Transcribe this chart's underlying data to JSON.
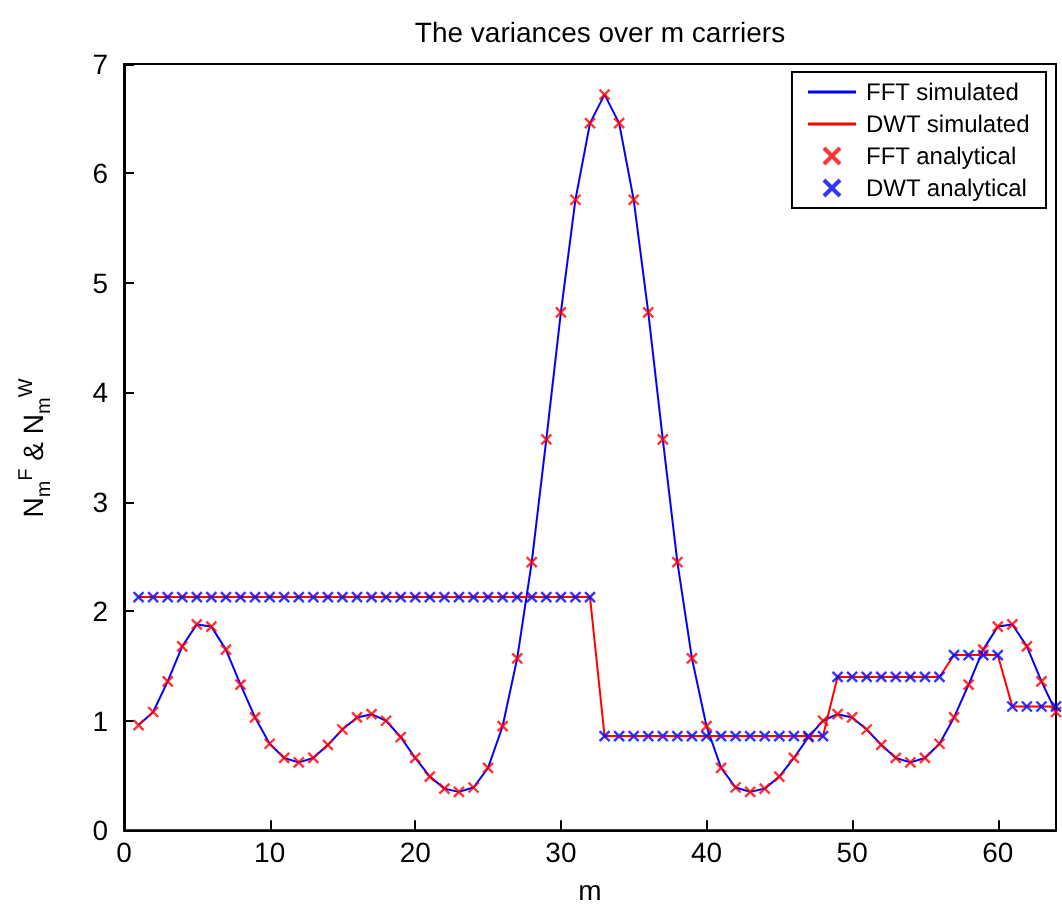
{
  "chart_data": {
    "type": "line",
    "title": "The variances over m carriers",
    "xlabel": "m",
    "ylabel": "N$_{m}$$^{F}$ & N$_{m}$$^{W}$",
    "x": [
      1,
      2,
      3,
      4,
      5,
      6,
      7,
      8,
      9,
      10,
      11,
      12,
      13,
      14,
      15,
      16,
      17,
      18,
      19,
      20,
      21,
      22,
      23,
      24,
      25,
      26,
      27,
      28,
      29,
      30,
      31,
      32,
      33,
      34,
      35,
      36,
      37,
      38,
      39,
      40,
      41,
      42,
      43,
      44,
      45,
      46,
      47,
      48,
      49,
      50,
      51,
      52,
      53,
      54,
      55,
      56,
      57,
      58,
      59,
      60,
      61,
      62,
      63,
      64
    ],
    "series": [
      {
        "name": "FFT simulated",
        "marker": "none",
        "color": "#0000ff",
        "values": [
          0.96,
          1.08,
          1.36,
          1.68,
          1.88,
          1.86,
          1.65,
          1.33,
          1.03,
          0.79,
          0.66,
          0.62,
          0.66,
          0.78,
          0.92,
          1.03,
          1.06,
          1.0,
          0.85,
          0.66,
          0.49,
          0.38,
          0.35,
          0.39,
          0.57,
          0.95,
          1.57,
          2.45,
          3.57,
          4.73,
          5.76,
          6.46,
          6.72,
          6.46,
          5.76,
          4.73,
          3.57,
          2.45,
          1.57,
          0.95,
          0.57,
          0.39,
          0.35,
          0.38,
          0.49,
          0.66,
          0.85,
          1.0,
          1.06,
          1.03,
          0.92,
          0.78,
          0.66,
          0.62,
          0.66,
          0.79,
          1.03,
          1.33,
          1.65,
          1.86,
          1.88,
          1.68,
          1.36,
          1.08
        ]
      },
      {
        "name": "DWT simulated",
        "marker": "none",
        "color": "#ff0000",
        "values": [
          2.13,
          2.13,
          2.13,
          2.13,
          2.13,
          2.13,
          2.13,
          2.13,
          2.13,
          2.13,
          2.13,
          2.13,
          2.13,
          2.13,
          2.13,
          2.13,
          2.13,
          2.13,
          2.13,
          2.13,
          2.13,
          2.13,
          2.13,
          2.13,
          2.13,
          2.13,
          2.13,
          2.13,
          2.13,
          2.13,
          2.13,
          2.13,
          0.86,
          0.86,
          0.86,
          0.86,
          0.86,
          0.86,
          0.86,
          0.86,
          0.86,
          0.86,
          0.86,
          0.86,
          0.86,
          0.86,
          0.86,
          0.86,
          1.4,
          1.4,
          1.4,
          1.4,
          1.4,
          1.4,
          1.4,
          1.4,
          1.6,
          1.6,
          1.6,
          1.6,
          1.13,
          1.13,
          1.13,
          1.13
        ]
      },
      {
        "name": "FFT analytical",
        "type": "scatter",
        "marker": "cross",
        "color": "#ff0000",
        "values": [
          0.96,
          1.08,
          1.36,
          1.68,
          1.88,
          1.86,
          1.65,
          1.33,
          1.03,
          0.79,
          0.66,
          0.62,
          0.66,
          0.78,
          0.92,
          1.03,
          1.06,
          1.0,
          0.85,
          0.66,
          0.49,
          0.38,
          0.35,
          0.39,
          0.57,
          0.95,
          1.57,
          2.45,
          3.57,
          4.73,
          5.76,
          6.46,
          6.72,
          6.46,
          5.76,
          4.73,
          3.57,
          2.45,
          1.57,
          0.95,
          0.57,
          0.39,
          0.35,
          0.38,
          0.49,
          0.66,
          0.85,
          1.0,
          1.06,
          1.03,
          0.92,
          0.78,
          0.66,
          0.62,
          0.66,
          0.79,
          1.03,
          1.33,
          1.65,
          1.86,
          1.88,
          1.68,
          1.36,
          1.08
        ]
      },
      {
        "name": "DWT analytical",
        "type": "scatter",
        "marker": "cross",
        "color": "#0000ff",
        "values": [
          2.13,
          2.13,
          2.13,
          2.13,
          2.13,
          2.13,
          2.13,
          2.13,
          2.13,
          2.13,
          2.13,
          2.13,
          2.13,
          2.13,
          2.13,
          2.13,
          2.13,
          2.13,
          2.13,
          2.13,
          2.13,
          2.13,
          2.13,
          2.13,
          2.13,
          2.13,
          2.13,
          2.13,
          2.13,
          2.13,
          2.13,
          2.13,
          0.86,
          0.86,
          0.86,
          0.86,
          0.86,
          0.86,
          0.86,
          0.86,
          0.86,
          0.86,
          0.86,
          0.86,
          0.86,
          0.86,
          0.86,
          0.86,
          1.4,
          1.4,
          1.4,
          1.4,
          1.4,
          1.4,
          1.4,
          1.4,
          1.6,
          1.6,
          1.6,
          1.6,
          1.13,
          1.13,
          1.13,
          1.13
        ]
      }
    ],
    "xlim": [
      0,
      64
    ],
    "xticks": [
      0,
      10,
      20,
      30,
      40,
      50,
      60
    ],
    "ylim": [
      0,
      7
    ],
    "yticks": [
      0,
      1,
      2,
      3,
      4,
      5,
      6,
      7
    ],
    "grid": false,
    "legend": "top right"
  }
}
